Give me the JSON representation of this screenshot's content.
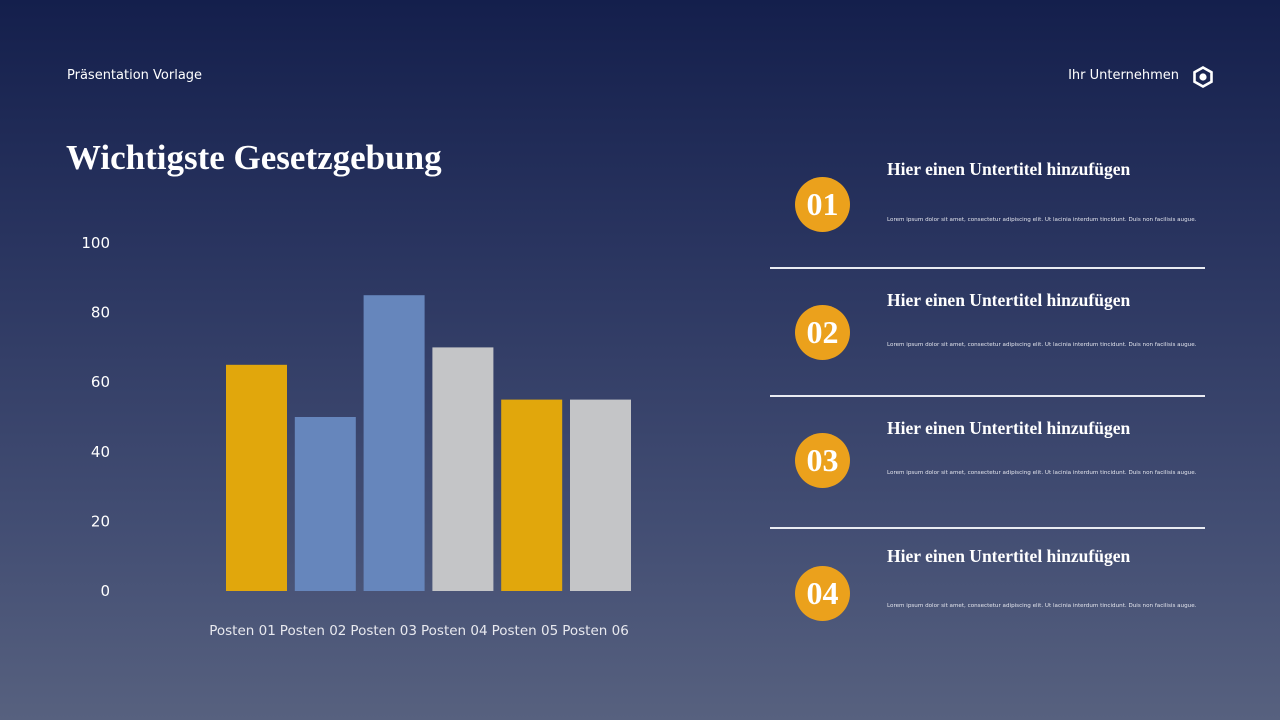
{
  "header": {
    "left_label": "Präsentation Vorlage",
    "company": "Ihr Unternehmen",
    "logo_icon": "hexagon-icon"
  },
  "title": "Wichtigste Gesetzgebung",
  "chart_data": {
    "type": "bar",
    "categories": [
      "Posten 01",
      "Posten 02",
      "Posten 03",
      "Posten 04",
      "Posten 05",
      "Posten 06"
    ],
    "values": [
      65,
      50,
      85,
      70,
      55,
      55
    ],
    "bar_colors": [
      "#e1a70c",
      "#6686bc",
      "#6686bc",
      "#c4c5c7",
      "#e1a70c",
      "#c4c5c7"
    ],
    "yticks": [
      "0",
      "20",
      "40",
      "60",
      "80",
      "100"
    ],
    "ylim": [
      0,
      100
    ],
    "grid": false,
    "title": "",
    "xlabel": "",
    "ylabel": ""
  },
  "items": [
    {
      "number": "01",
      "subtitle": "Hier einen Untertitel hinzufügen",
      "text": "Lorem ipsum dolor sit amet, consectetur adipiscing elit. Ut lacinia interdum tincidunt. Duis non facilisis augue."
    },
    {
      "number": "02",
      "subtitle": "Hier einen Untertitel hinzufügen",
      "text": "Lorem ipsum dolor sit amet, consectetur adipiscing elit. Ut lacinia interdum tincidunt. Duis non facilisis augue."
    },
    {
      "number": "03",
      "subtitle": "Hier einen Untertitel hinzufügen",
      "text": "Lorem ipsum dolor sit amet, consectetur adipiscing elit. Ut lacinia interdum tincidunt. Duis non facilisis augue."
    },
    {
      "number": "04",
      "subtitle": "Hier einen Untertitel hinzufügen",
      "text": "Lorem ipsum dolor sit amet, consectetur adipiscing elit. Ut lacinia interdum tincidunt. Duis non facilisis augue."
    }
  ],
  "accent": "#eba11c"
}
